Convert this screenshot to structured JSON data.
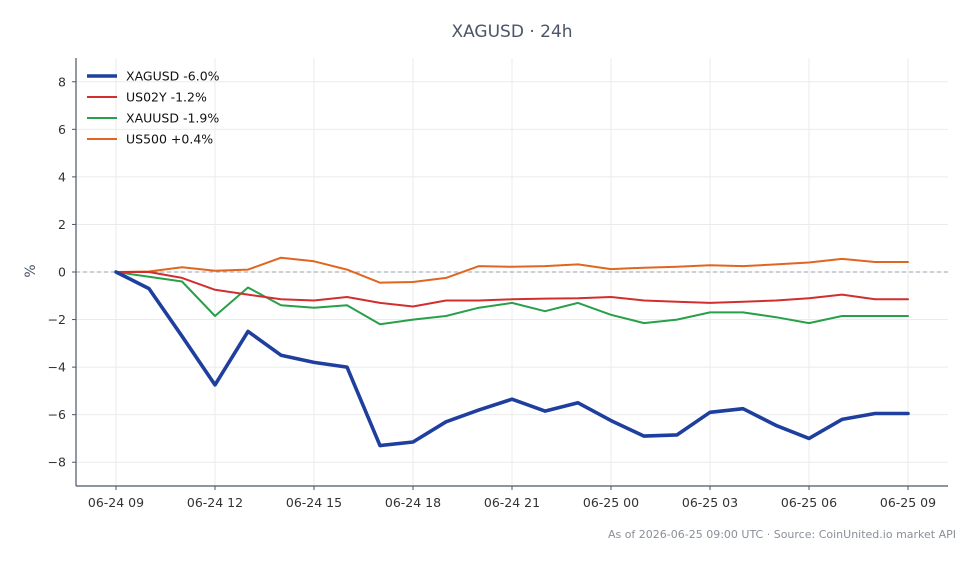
{
  "chart_data": {
    "type": "line",
    "title": "XAGUSD · 24h",
    "xlabel": "",
    "ylabel": "%",
    "ylim": [
      -9,
      9
    ],
    "yticks": [
      -8,
      -6,
      -4,
      -2,
      0,
      2,
      4,
      6,
      8
    ],
    "xticks": [
      "06-24 09",
      "06-24 12",
      "06-24 15",
      "06-24 18",
      "06-24 21",
      "06-25 00",
      "06-25 03",
      "06-25 06",
      "06-25 09"
    ],
    "x": [
      "06-24 09",
      "06-24 10",
      "06-24 11",
      "06-24 12",
      "06-24 13",
      "06-24 14",
      "06-24 15",
      "06-24 16",
      "06-24 17",
      "06-24 18",
      "06-24 19",
      "06-24 20",
      "06-24 21",
      "06-24 22",
      "06-24 23",
      "06-25 00",
      "06-25 01",
      "06-25 02",
      "06-25 03",
      "06-25 04",
      "06-25 05",
      "06-25 06",
      "06-25 07",
      "06-25 08",
      "06-25 09"
    ],
    "grid": true,
    "legend_position": "top-left",
    "zero_line": true,
    "series": [
      {
        "name": "XAGUSD -6.0%",
        "color": "#1f3f9f",
        "values": [
          0.0,
          -0.7,
          -2.7,
          -4.75,
          -2.5,
          -3.5,
          -3.8,
          -4.0,
          -7.3,
          -7.15,
          -6.3,
          -5.8,
          -5.35,
          -5.85,
          -5.5,
          -6.25,
          -6.9,
          -6.85,
          -5.9,
          -5.75,
          -6.45,
          -7.0,
          -6.2,
          -5.95,
          -5.95
        ]
      },
      {
        "name": "US02Y -1.2%",
        "color": "#d12f2f",
        "values": [
          0.0,
          0.0,
          -0.25,
          -0.75,
          -0.95,
          -1.15,
          -1.2,
          -1.05,
          -1.3,
          -1.45,
          -1.2,
          -1.2,
          -1.15,
          -1.12,
          -1.1,
          -1.05,
          -1.2,
          -1.25,
          -1.3,
          -1.25,
          -1.2,
          -1.1,
          -0.95,
          -1.15,
          -1.15
        ]
      },
      {
        "name": "XAUUSD -1.9%",
        "color": "#27a049",
        "values": [
          0.0,
          -0.2,
          -0.4,
          -1.85,
          -0.65,
          -1.4,
          -1.5,
          -1.4,
          -2.2,
          -2.0,
          -1.85,
          -1.5,
          -1.3,
          -1.65,
          -1.3,
          -1.8,
          -2.15,
          -2.0,
          -1.7,
          -1.7,
          -1.9,
          -2.15,
          -1.85,
          -1.85,
          -1.85
        ]
      },
      {
        "name": "US500 +0.4%",
        "color": "#e0661f",
        "values": [
          0.0,
          0.02,
          0.2,
          0.05,
          0.1,
          0.6,
          0.45,
          0.1,
          -0.45,
          -0.42,
          -0.25,
          0.25,
          0.22,
          0.25,
          0.32,
          0.12,
          0.18,
          0.22,
          0.28,
          0.25,
          0.32,
          0.4,
          0.55,
          0.42,
          0.42
        ]
      }
    ]
  },
  "footer": {
    "text": "As of 2026-06-25 09:00 UTC · Source: CoinUnited.io market API"
  },
  "colors": {
    "axis": "#4a5568",
    "grid": "#ebebeb",
    "zero_line": "#9aa3b2"
  }
}
